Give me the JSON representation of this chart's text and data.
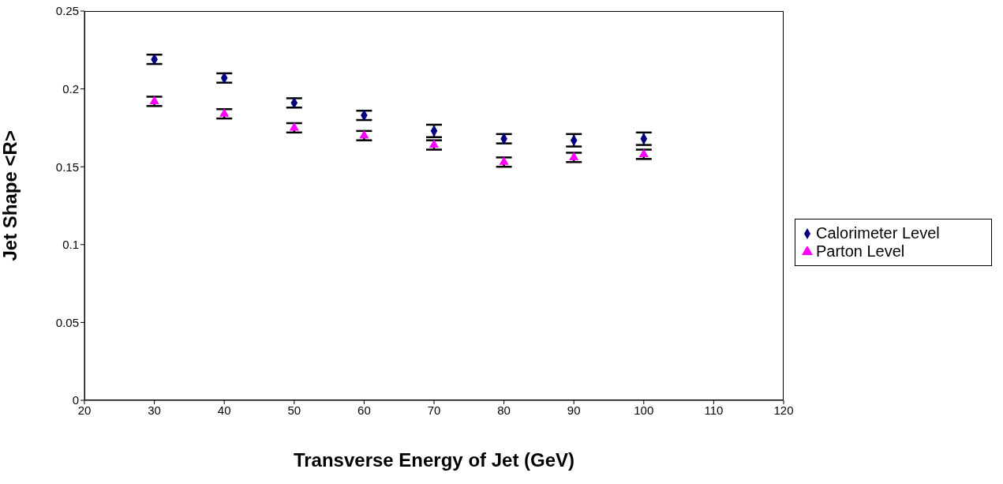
{
  "chart_data": {
    "type": "scatter",
    "xlabel": "Transverse Energy of Jet (GeV)",
    "ylabel": "Jet Shape <R>",
    "x": [
      30,
      40,
      50,
      60,
      70,
      80,
      90,
      100
    ],
    "series": [
      {
        "name": "Calorimeter Level",
        "color": "#000080",
        "marker": "diamond",
        "values": [
          0.219,
          0.207,
          0.191,
          0.183,
          0.173,
          0.168,
          0.167,
          0.168
        ],
        "errors": [
          0.003,
          0.003,
          0.003,
          0.003,
          0.004,
          0.003,
          0.004,
          0.004
        ]
      },
      {
        "name": "Parton Level",
        "color": "#ff00ff",
        "marker": "triangle",
        "values": [
          0.192,
          0.184,
          0.175,
          0.17,
          0.164,
          0.153,
          0.156,
          0.158
        ],
        "errors": [
          0.003,
          0.003,
          0.003,
          0.003,
          0.003,
          0.003,
          0.003,
          0.003
        ]
      }
    ],
    "xlim": [
      20,
      120
    ],
    "xticks": [
      20,
      30,
      40,
      50,
      60,
      70,
      80,
      90,
      100,
      110,
      120
    ],
    "ylim": [
      0,
      0.25
    ],
    "yticks": [
      0,
      0.05,
      0.1,
      0.15,
      0.2,
      0.25
    ],
    "grid": false,
    "legend": "right"
  }
}
